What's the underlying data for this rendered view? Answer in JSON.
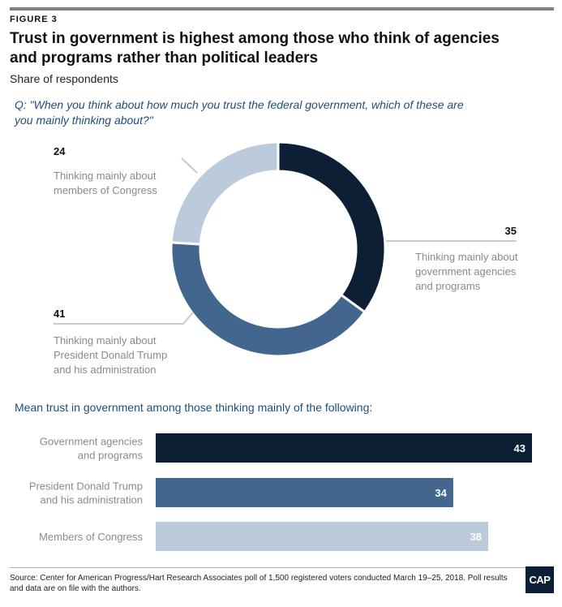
{
  "figure_label": "FIGURE 3",
  "title": "Trust in government is highest among those who think of agencies and programs rather than political leaders",
  "subtitle": "Share of respondents",
  "question": "Q: \"When you think about how much you trust the federal government, which of these are you mainly thinking about?\"",
  "colors": {
    "dark": "#0d1f35",
    "mid": "#42668e",
    "light": "#bccbdb",
    "leader": "#c9c9c9",
    "accent_text": "#1f4e79"
  },
  "chart_data": [
    {
      "type": "pie",
      "donut": true,
      "slices": [
        {
          "value": 35,
          "label_lines": [
            "Thinking mainly about",
            "government agencies",
            "and programs"
          ],
          "color": "#0d1f35"
        },
        {
          "value": 41,
          "label_lines": [
            "Thinking mainly about",
            "President Donald Trump",
            "and his administration"
          ],
          "color": "#42668e"
        },
        {
          "value": 24,
          "label_lines": [
            "Thinking mainly about",
            "members of Congress"
          ],
          "color": "#bccbdb"
        }
      ]
    },
    {
      "type": "bar",
      "orientation": "horizontal",
      "title": "Mean trust in government among those thinking mainly of the following:",
      "categories": [
        [
          "Government agencies",
          "and programs"
        ],
        [
          "President Donald Trump",
          "and his administration"
        ],
        [
          "Members of Congress"
        ]
      ],
      "values": [
        43,
        34,
        38
      ],
      "colors": [
        "#0d1f35",
        "#42668e",
        "#bccbdb"
      ],
      "xlim": [
        0,
        43
      ]
    }
  ],
  "source": "Source: Center for American Progress/Hart Research Associates poll of 1,500 registered voters conducted March 19–25, 2018. Poll results and data are on file with the authors.",
  "logo_text": "CAP"
}
